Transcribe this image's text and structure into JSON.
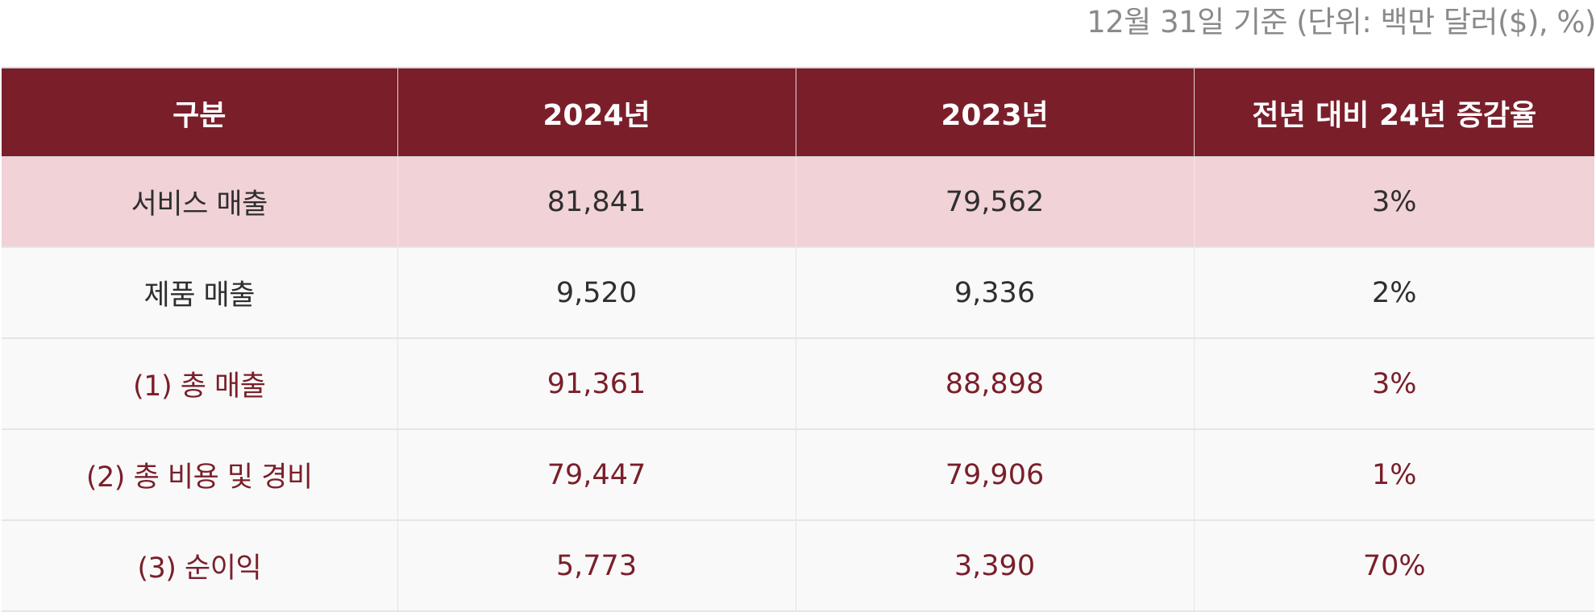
{
  "unit_note": "12월 31일 기준 (단위: 백만 달러($), %)",
  "table": {
    "headers": [
      "구분",
      "2024년",
      "2023년",
      "전년 대비 24년 증감율"
    ],
    "rows": [
      {
        "label": "서비스 매출",
        "y2024": "81,841",
        "y2023": "79,562",
        "change": "3%"
      },
      {
        "label": "제품 매출",
        "y2024": "9,520",
        "y2023": "9,336",
        "change": "2%"
      },
      {
        "label": "(1) 총 매출",
        "y2024": "91,361",
        "y2023": "88,898",
        "change": "3%"
      },
      {
        "label": "(2) 총 비용 및 경비",
        "y2024": "79,447",
        "y2023": "79,906",
        "change": "1%"
      },
      {
        "label": "(3) 순이익",
        "y2024": "5,773",
        "y2023": "3,390",
        "change": "70%"
      }
    ]
  },
  "colors": {
    "header_bg": "#7a1f2a",
    "highlight_row_bg": "#f0d2d7",
    "accent_text": "#7a1f2a",
    "note_text": "#8a8a8a"
  }
}
